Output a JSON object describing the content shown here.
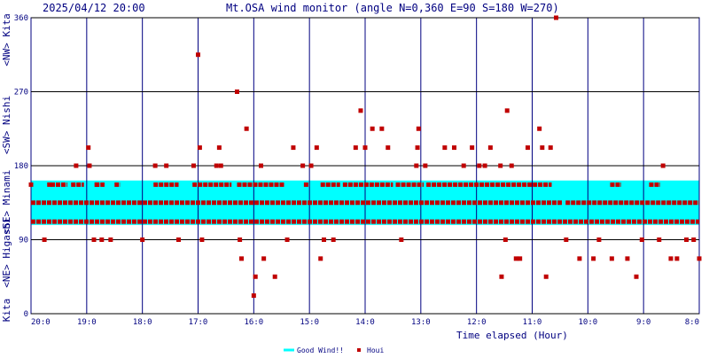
{
  "header": {
    "timestamp": "2025/04/12 20:00",
    "title": "Mt.OSA wind monitor (angle N=0,360 E=90 S=180 W=270)"
  },
  "chart_data": {
    "type": "scatter",
    "title": "Mt.OSA wind monitor (angle N=0,360 E=90 S=180 W=270)",
    "xlabel": "Time elapsed (Hour)",
    "ylabel_groups": [
      "Kita",
      "<NE> Higashi",
      "<SE> Minami",
      "<SW> Nishi",
      "<NW> Kita"
    ],
    "x_ticks": [
      "20:0",
      "19:0",
      "18:0",
      "17:0",
      "16:0",
      "15:0",
      "14:0",
      "13:0",
      "12:0",
      "11:0",
      "10:0",
      "9:0",
      "8:0"
    ],
    "y_ticks": [
      0,
      90,
      180,
      270,
      360
    ],
    "xlim_hours_elapsed": [
      0,
      12
    ],
    "ylim": [
      0,
      360
    ],
    "grid": true,
    "legend_position": "bottom-center",
    "good_wind_band": {
      "name": "Good Wind!!",
      "y_range": [
        108,
        162
      ],
      "color": "#00ffff"
    },
    "series": [
      {
        "name": "Houi",
        "color": "#c00000",
        "data": [
          [
            0.0,
            157
          ],
          [
            0.24,
            90
          ],
          [
            0.33,
            157
          ],
          [
            0.81,
            180
          ],
          [
            1.03,
            202
          ],
          [
            1.05,
            180
          ],
          [
            1.13,
            90
          ],
          [
            1.18,
            157
          ],
          [
            1.27,
            90
          ],
          [
            1.43,
            90
          ],
          [
            2.0,
            90
          ],
          [
            2.23,
            180
          ],
          [
            2.43,
            180
          ],
          [
            2.65,
            90
          ],
          [
            2.92,
            180
          ],
          [
            3.0,
            315
          ],
          [
            3.03,
            202
          ],
          [
            3.07,
            90
          ],
          [
            3.33,
            180
          ],
          [
            3.38,
            202
          ],
          [
            3.41,
            180
          ],
          [
            3.7,
            270
          ],
          [
            3.75,
            90
          ],
          [
            3.78,
            67
          ],
          [
            3.87,
            225
          ],
          [
            4.0,
            22
          ],
          [
            4.03,
            45
          ],
          [
            4.13,
            180
          ],
          [
            4.18,
            67
          ],
          [
            4.38,
            45
          ],
          [
            4.6,
            90
          ],
          [
            4.71,
            202
          ],
          [
            4.88,
            180
          ],
          [
            5.03,
            180
          ],
          [
            5.13,
            202
          ],
          [
            5.2,
            67
          ],
          [
            5.26,
            90
          ],
          [
            5.43,
            90
          ],
          [
            5.83,
            202
          ],
          [
            5.92,
            247
          ],
          [
            6.0,
            202
          ],
          [
            6.13,
            225
          ],
          [
            6.3,
            225
          ],
          [
            6.41,
            202
          ],
          [
            6.65,
            90
          ],
          [
            6.92,
            180
          ],
          [
            6.94,
            202
          ],
          [
            6.96,
            225
          ],
          [
            7.08,
            180
          ],
          [
            7.43,
            202
          ],
          [
            7.6,
            202
          ],
          [
            7.77,
            180
          ],
          [
            7.92,
            202
          ],
          [
            8.05,
            180
          ],
          [
            8.15,
            180
          ],
          [
            8.25,
            202
          ],
          [
            8.43,
            180
          ],
          [
            8.45,
            45
          ],
          [
            8.52,
            90
          ],
          [
            8.55,
            247
          ],
          [
            8.63,
            180
          ],
          [
            8.71,
            67
          ],
          [
            8.78,
            67
          ],
          [
            8.92,
            202
          ],
          [
            9.13,
            225
          ],
          [
            9.18,
            202
          ],
          [
            9.25,
            45
          ],
          [
            9.33,
            202
          ],
          [
            9.43,
            360
          ],
          [
            9.61,
            90
          ],
          [
            9.85,
            67
          ],
          [
            10.1,
            67
          ],
          [
            10.2,
            90
          ],
          [
            10.43,
            67
          ],
          [
            10.71,
            67
          ],
          [
            10.87,
            45
          ],
          [
            10.97,
            90
          ],
          [
            11.28,
            90
          ],
          [
            11.35,
            180
          ],
          [
            11.49,
            67
          ],
          [
            11.6,
            67
          ],
          [
            11.77,
            90
          ],
          [
            11.9,
            90
          ],
          [
            12.0,
            67
          ]
        ]
      }
    ]
  },
  "legend": {
    "good_label": "Good Wind!!",
    "houi_label": "Houi"
  }
}
